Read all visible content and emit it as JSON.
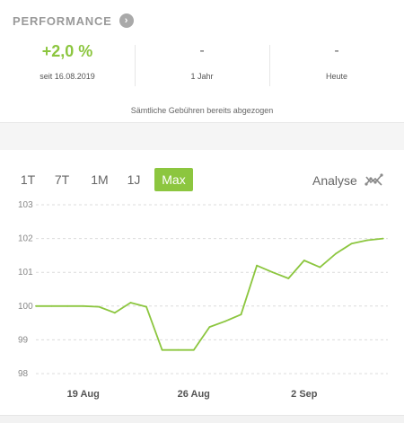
{
  "performance": {
    "title": "PERFORMANCE",
    "stats": [
      {
        "value": "+2,0 %",
        "label": "seit 16.08.2019"
      },
      {
        "value": "-",
        "label": "1 Jahr"
      },
      {
        "value": "-",
        "label": "Heute"
      }
    ],
    "fees_note": "Sämtliche Gebühren bereits abgezogen"
  },
  "range_tabs": [
    {
      "label": "1T",
      "active": false
    },
    {
      "label": "7T",
      "active": false
    },
    {
      "label": "1M",
      "active": false
    },
    {
      "label": "1J",
      "active": false
    },
    {
      "label": "Max",
      "active": true
    }
  ],
  "analyse_label": "Analyse",
  "icons": {
    "header_arrow": "chevron-right-icon",
    "analyse": "chart-points-icon"
  },
  "colors": {
    "accent": "#8cc63f",
    "line": "#8cc63f",
    "muted": "#9a9a9a"
  },
  "chart_data": {
    "type": "line",
    "ylim": [
      98,
      103
    ],
    "y_ticks": [
      "98",
      "99",
      "100",
      "101",
      "102",
      "103"
    ],
    "x_ticks": [
      "19 Aug",
      "26 Aug",
      "2 Sep"
    ],
    "series": [
      {
        "points": [
          [
            "2019-08-16",
            100.0
          ],
          [
            "2019-08-17",
            100.0
          ],
          [
            "2019-08-18",
            100.0
          ],
          [
            "2019-08-19",
            100.0
          ],
          [
            "2019-08-20",
            99.98
          ],
          [
            "2019-08-21",
            99.8
          ],
          [
            "2019-08-22",
            100.1
          ],
          [
            "2019-08-23",
            99.98
          ],
          [
            "2019-08-24",
            98.7
          ],
          [
            "2019-08-25",
            98.7
          ],
          [
            "2019-08-26",
            98.7
          ],
          [
            "2019-08-27",
            99.38
          ],
          [
            "2019-08-28",
            99.55
          ],
          [
            "2019-08-29",
            99.75
          ],
          [
            "2019-08-30",
            101.2
          ],
          [
            "2019-08-31",
            101.0
          ],
          [
            "2019-09-01",
            100.82
          ],
          [
            "2019-09-02",
            101.35
          ],
          [
            "2019-09-03",
            101.15
          ],
          [
            "2019-09-04",
            101.55
          ],
          [
            "2019-09-05",
            101.85
          ],
          [
            "2019-09-06",
            101.95
          ],
          [
            "2019-09-07",
            102.0
          ]
        ]
      }
    ]
  }
}
